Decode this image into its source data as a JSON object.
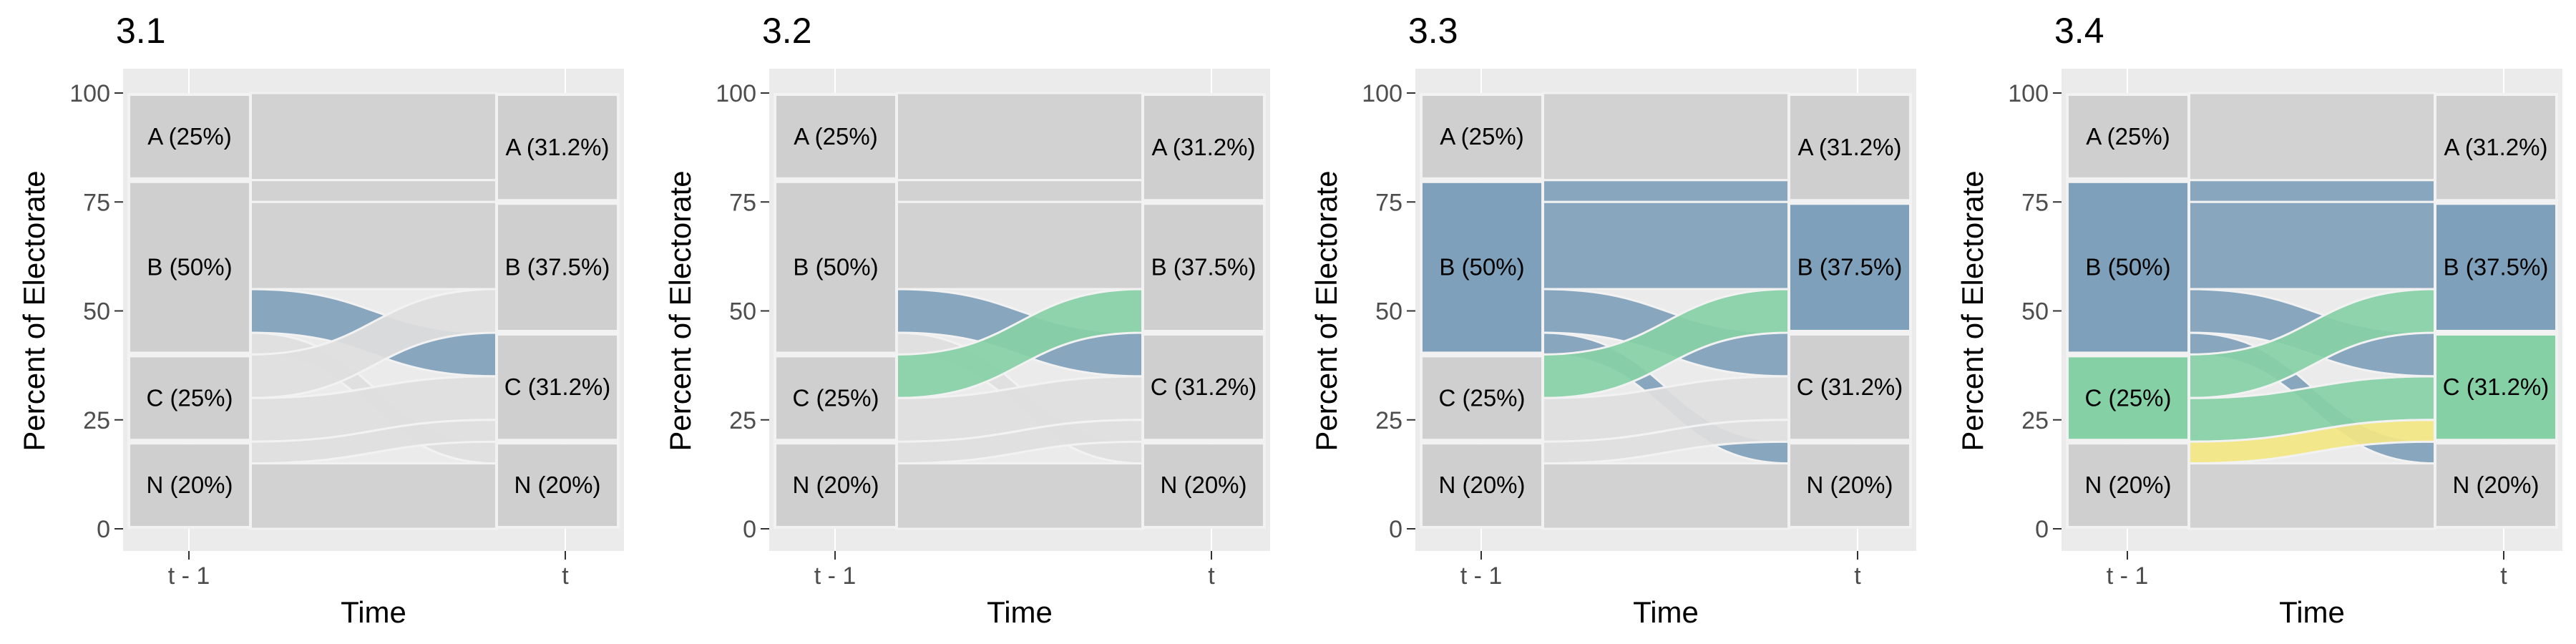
{
  "chart_data": [
    {
      "type": "alluvial",
      "title": "3.1",
      "xlabel": "Time",
      "ylabel": "Percent of Electorate",
      "categories": [
        "t - 1",
        "t"
      ],
      "ylim": [
        0,
        100
      ],
      "yticks": [
        "0",
        "25",
        "50",
        "75",
        "100"
      ],
      "nodes_left": [
        {
          "label": "A (25%)",
          "y0": 80,
          "y1": 100
        },
        {
          "label": "B (50%)",
          "y0": 40,
          "y1": 80
        },
        {
          "label": "C (25%)",
          "y0": 20,
          "y1": 40
        },
        {
          "label": "N (20%)",
          "y0": 0,
          "y1": 20
        }
      ],
      "nodes_right": [
        {
          "label": "A (31.2%)",
          "y0": 75,
          "y1": 100
        },
        {
          "label": "B (37.5%)",
          "y0": 45,
          "y1": 75
        },
        {
          "label": "C (31.2%)",
          "y0": 20,
          "y1": 45
        },
        {
          "label": "N (20%)",
          "y0": 0,
          "y1": 20
        }
      ],
      "flows": [
        {
          "from": "A",
          "to": "A",
          "y0a": 80,
          "y1a": 100,
          "y0b": 80,
          "y1b": 100,
          "color": "#cfcfcf"
        },
        {
          "from": "B",
          "to": "A",
          "y0a": 75,
          "y1a": 80,
          "y0b": 75,
          "y1b": 80,
          "color": "#cfcfcf"
        },
        {
          "from": "B",
          "to": "B",
          "y0a": 55,
          "y1a": 75,
          "y0b": 55,
          "y1b": 75,
          "color": "#cfcfcf"
        },
        {
          "from": "B",
          "to": "C",
          "y0a": 45,
          "y1a": 55,
          "y0b": 35,
          "y1b": 45,
          "color": "#7fa0ba"
        },
        {
          "from": "B",
          "to": "N",
          "y0a": 40,
          "y1a": 45,
          "y0b": 15,
          "y1b": 20,
          "color": "#dedede"
        },
        {
          "from": "C",
          "to": "B",
          "y0a": 30,
          "y1a": 40,
          "y0b": 45,
          "y1b": 55,
          "color": "#dedede"
        },
        {
          "from": "C",
          "to": "C",
          "y0a": 20,
          "y1a": 30,
          "y0b": 25,
          "y1b": 35,
          "color": "#dedede"
        },
        {
          "from": "N",
          "to": "C",
          "y0a": 15,
          "y1a": 20,
          "y0b": 20,
          "y1b": 25,
          "color": "#dedede"
        },
        {
          "from": "N",
          "to": "N",
          "y0a": 0,
          "y1a": 15,
          "y0b": 0,
          "y1b": 15,
          "color": "#cfcfcf"
        }
      ]
    },
    {
      "type": "alluvial",
      "title": "3.2",
      "xlabel": "Time",
      "ylabel": "Percent of Electorate",
      "categories": [
        "t - 1",
        "t"
      ],
      "ylim": [
        0,
        100
      ],
      "yticks": [
        "0",
        "25",
        "50",
        "75",
        "100"
      ],
      "nodes_left": [
        {
          "label": "A (25%)",
          "y0": 80,
          "y1": 100
        },
        {
          "label": "B (50%)",
          "y0": 40,
          "y1": 80
        },
        {
          "label": "C (25%)",
          "y0": 20,
          "y1": 40
        },
        {
          "label": "N (20%)",
          "y0": 0,
          "y1": 20
        }
      ],
      "nodes_right": [
        {
          "label": "A (31.2%)",
          "y0": 75,
          "y1": 100
        },
        {
          "label": "B (37.5%)",
          "y0": 45,
          "y1": 75
        },
        {
          "label": "C (31.2%)",
          "y0": 20,
          "y1": 45
        },
        {
          "label": "N (20%)",
          "y0": 0,
          "y1": 20
        }
      ],
      "flows": [
        {
          "from": "A",
          "to": "A",
          "y0a": 80,
          "y1a": 100,
          "y0b": 80,
          "y1b": 100,
          "color": "#cfcfcf"
        },
        {
          "from": "B",
          "to": "A",
          "y0a": 75,
          "y1a": 80,
          "y0b": 75,
          "y1b": 80,
          "color": "#cfcfcf"
        },
        {
          "from": "B",
          "to": "B",
          "y0a": 55,
          "y1a": 75,
          "y0b": 55,
          "y1b": 75,
          "color": "#cfcfcf"
        },
        {
          "from": "B",
          "to": "C",
          "y0a": 45,
          "y1a": 55,
          "y0b": 35,
          "y1b": 45,
          "color": "#7fa0ba"
        },
        {
          "from": "B",
          "to": "N",
          "y0a": 40,
          "y1a": 45,
          "y0b": 15,
          "y1b": 20,
          "color": "#dedede"
        },
        {
          "from": "C",
          "to": "B",
          "y0a": 30,
          "y1a": 40,
          "y0b": 45,
          "y1b": 55,
          "color": "#86d0a6"
        },
        {
          "from": "C",
          "to": "C",
          "y0a": 20,
          "y1a": 30,
          "y0b": 25,
          "y1b": 35,
          "color": "#dedede"
        },
        {
          "from": "N",
          "to": "C",
          "y0a": 15,
          "y1a": 20,
          "y0b": 20,
          "y1b": 25,
          "color": "#dedede"
        },
        {
          "from": "N",
          "to": "N",
          "y0a": 0,
          "y1a": 15,
          "y0b": 0,
          "y1b": 15,
          "color": "#cfcfcf"
        }
      ]
    },
    {
      "type": "alluvial",
      "title": "3.3",
      "xlabel": "Time",
      "ylabel": "Percent of Electorate",
      "categories": [
        "t - 1",
        "t"
      ],
      "ylim": [
        0,
        100
      ],
      "yticks": [
        "0",
        "25",
        "50",
        "75",
        "100"
      ],
      "nodes_left": [
        {
          "label": "A (25%)",
          "y0": 80,
          "y1": 100
        },
        {
          "label": "B (50%)",
          "y0": 40,
          "y1": 80,
          "color": "#7fa0ba"
        },
        {
          "label": "C (25%)",
          "y0": 20,
          "y1": 40
        },
        {
          "label": "N (20%)",
          "y0": 0,
          "y1": 20
        }
      ],
      "nodes_right": [
        {
          "label": "A (31.2%)",
          "y0": 75,
          "y1": 100
        },
        {
          "label": "B (37.5%)",
          "y0": 45,
          "y1": 75,
          "color": "#7fa0ba"
        },
        {
          "label": "C (31.2%)",
          "y0": 20,
          "y1": 45
        },
        {
          "label": "N (20%)",
          "y0": 0,
          "y1": 20
        }
      ],
      "flows": [
        {
          "from": "A",
          "to": "A",
          "y0a": 80,
          "y1a": 100,
          "y0b": 80,
          "y1b": 100,
          "color": "#cfcfcf"
        },
        {
          "from": "B",
          "to": "A",
          "y0a": 75,
          "y1a": 80,
          "y0b": 75,
          "y1b": 80,
          "color": "#7fa0ba"
        },
        {
          "from": "B",
          "to": "B",
          "y0a": 55,
          "y1a": 75,
          "y0b": 55,
          "y1b": 75,
          "color": "#7fa0ba"
        },
        {
          "from": "B",
          "to": "C",
          "y0a": 45,
          "y1a": 55,
          "y0b": 35,
          "y1b": 45,
          "color": "#7fa0ba"
        },
        {
          "from": "B",
          "to": "N",
          "y0a": 40,
          "y1a": 45,
          "y0b": 15,
          "y1b": 20,
          "color": "#7fa0ba"
        },
        {
          "from": "C",
          "to": "B",
          "y0a": 30,
          "y1a": 40,
          "y0b": 45,
          "y1b": 55,
          "color": "#86d0a6"
        },
        {
          "from": "C",
          "to": "C",
          "y0a": 20,
          "y1a": 30,
          "y0b": 25,
          "y1b": 35,
          "color": "#dedede"
        },
        {
          "from": "N",
          "to": "C",
          "y0a": 15,
          "y1a": 20,
          "y0b": 20,
          "y1b": 25,
          "color": "#dedede"
        },
        {
          "from": "N",
          "to": "N",
          "y0a": 0,
          "y1a": 15,
          "y0b": 0,
          "y1b": 15,
          "color": "#cfcfcf"
        }
      ]
    },
    {
      "type": "alluvial",
      "title": "3.4",
      "xlabel": "Time",
      "ylabel": "Percent of Electorate",
      "categories": [
        "t - 1",
        "t"
      ],
      "ylim": [
        0,
        100
      ],
      "yticks": [
        "0",
        "25",
        "50",
        "75",
        "100"
      ],
      "nodes_left": [
        {
          "label": "A (25%)",
          "y0": 80,
          "y1": 100
        },
        {
          "label": "B (50%)",
          "y0": 40,
          "y1": 80,
          "color": "#7fa0ba"
        },
        {
          "label": "C (25%)",
          "y0": 20,
          "y1": 40,
          "color": "#86d0a6"
        },
        {
          "label": "N (20%)",
          "y0": 0,
          "y1": 20
        }
      ],
      "nodes_right": [
        {
          "label": "A (31.2%)",
          "y0": 75,
          "y1": 100
        },
        {
          "label": "B (37.5%)",
          "y0": 45,
          "y1": 75,
          "color": "#7fa0ba"
        },
        {
          "label": "C (31.2%)",
          "y0": 20,
          "y1": 45,
          "color": "#86d0a6"
        },
        {
          "label": "N (20%)",
          "y0": 0,
          "y1": 20
        }
      ],
      "flows": [
        {
          "from": "A",
          "to": "A",
          "y0a": 80,
          "y1a": 100,
          "y0b": 80,
          "y1b": 100,
          "color": "#cfcfcf"
        },
        {
          "from": "B",
          "to": "A",
          "y0a": 75,
          "y1a": 80,
          "y0b": 75,
          "y1b": 80,
          "color": "#7fa0ba"
        },
        {
          "from": "B",
          "to": "B",
          "y0a": 55,
          "y1a": 75,
          "y0b": 55,
          "y1b": 75,
          "color": "#7fa0ba"
        },
        {
          "from": "B",
          "to": "C",
          "y0a": 45,
          "y1a": 55,
          "y0b": 35,
          "y1b": 45,
          "color": "#7fa0ba"
        },
        {
          "from": "B",
          "to": "N",
          "y0a": 40,
          "y1a": 45,
          "y0b": 15,
          "y1b": 20,
          "color": "#7fa0ba"
        },
        {
          "from": "C",
          "to": "B",
          "y0a": 30,
          "y1a": 40,
          "y0b": 45,
          "y1b": 55,
          "color": "#86d0a6"
        },
        {
          "from": "C",
          "to": "C",
          "y0a": 20,
          "y1a": 30,
          "y0b": 25,
          "y1b": 35,
          "color": "#86d0a6"
        },
        {
          "from": "N",
          "to": "C",
          "y0a": 15,
          "y1a": 20,
          "y0b": 20,
          "y1b": 25,
          "color": "#f3e683"
        },
        {
          "from": "N",
          "to": "N",
          "y0a": 0,
          "y1a": 15,
          "y0b": 0,
          "y1b": 15,
          "color": "#cfcfcf"
        }
      ]
    }
  ],
  "colors": {
    "panel_background": "#ebebeb",
    "gridline": "#ffffff",
    "node_gray": "#cfcfcf",
    "node_border": "#f2f2f2",
    "blue": "#7fa0ba",
    "green": "#86d0a6",
    "yellow": "#f3e683"
  }
}
